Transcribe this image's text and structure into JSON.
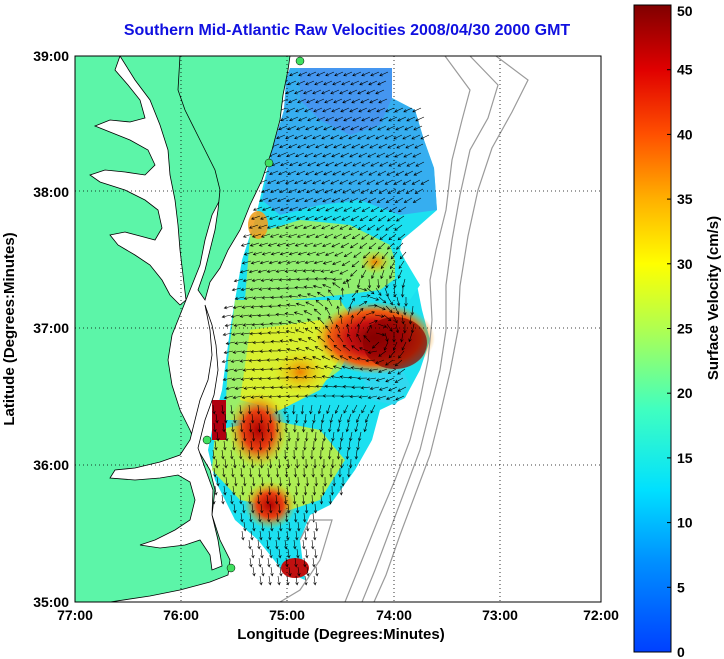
{
  "title": "Southern Mid-Atlantic Raw Velocities 2008/04/30 2000 GMT",
  "axes": {
    "xlabel": "Longitude (Degrees:Minutes)",
    "ylabel": "Latitude (Degrees:Minutes)",
    "x_ticks": [
      "77:00",
      "76:00",
      "75:00",
      "74:00",
      "73:00",
      "72:00"
    ],
    "y_ticks": [
      "39:00",
      "38:00",
      "37:00",
      "36:00",
      "35:00"
    ]
  },
  "colorbar": {
    "label": "Surface Velocity (cm/s)",
    "min": 0,
    "max": 50,
    "ticks": [
      "0",
      "5",
      "10",
      "15",
      "20",
      "25",
      "30",
      "35",
      "40",
      "45",
      "50"
    ]
  },
  "colors": {
    "land": "#5cf5a8",
    "title": "#1010e0",
    "station": "#40e060"
  }
}
